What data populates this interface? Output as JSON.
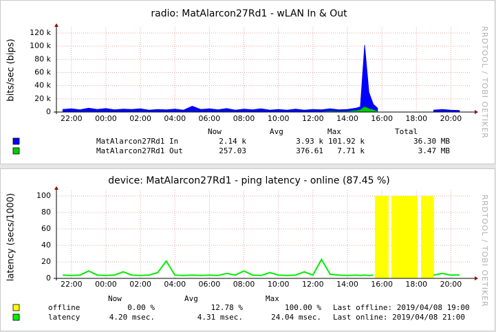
{
  "chart_data": [
    {
      "type": "area",
      "title": "radio: MatAlarcon27Rd1 - wLAN In & Out",
      "ylabel": "bits/sec (bips)",
      "watermark": "RRDTOOL / TOBI OETIKER",
      "grid": true,
      "xlim": [
        21.13,
        45.1
      ],
      "xticks": [
        {
          "value": 22,
          "label": "22:00"
        },
        {
          "value": 24,
          "label": "00:00"
        },
        {
          "value": 26,
          "label": "02:00"
        },
        {
          "value": 28,
          "label": "04:00"
        },
        {
          "value": 30,
          "label": "06:00"
        },
        {
          "value": 32,
          "label": "08:00"
        },
        {
          "value": 34,
          "label": "10:00"
        },
        {
          "value": 36,
          "label": "12:00"
        },
        {
          "value": 38,
          "label": "14:00"
        },
        {
          "value": 40,
          "label": "16:00"
        },
        {
          "value": 42,
          "label": "18:00"
        },
        {
          "value": 44,
          "label": "20:00"
        }
      ],
      "ylim": [
        0,
        120000
      ],
      "yticks": [
        0,
        {
          "value": 20000,
          "label": "20 k"
        },
        {
          "value": 40000,
          "label": "40 k"
        },
        {
          "value": 60000,
          "label": "60 k"
        },
        {
          "value": 80000,
          "label": "80 k"
        },
        {
          "value": 100000,
          "label": "100 k"
        },
        {
          "value": 120000,
          "label": "120 k"
        }
      ],
      "x": [
        21.5,
        22,
        22.5,
        23,
        23.5,
        24,
        24.5,
        25,
        25.5,
        26,
        26.5,
        27,
        27.5,
        28,
        28.5,
        29,
        29.5,
        30,
        30.5,
        31,
        31.5,
        32,
        32.5,
        33,
        33.5,
        34,
        34.5,
        35,
        35.5,
        36,
        36.5,
        37,
        37.5,
        38,
        38.5,
        38.75,
        39,
        39.25,
        39.5,
        39.75,
        40,
        40.5,
        41,
        41.5,
        42,
        42.5,
        43,
        43.5,
        44,
        44.5
      ],
      "series": [
        {
          "name": "MatAlarcon27Rd1 In",
          "color": "#0000ff",
          "values": [
            4000,
            5000,
            3500,
            6000,
            4000,
            5500,
            3500,
            4500,
            4000,
            5000,
            3000,
            4000,
            3500,
            4500,
            3000,
            9000,
            4000,
            5000,
            3500,
            5500,
            3000,
            4500,
            3500,
            5000,
            3000,
            4000,
            3000,
            4500,
            3000,
            4000,
            3500,
            5000,
            3500,
            4000,
            6000,
            8000,
            101920,
            30000,
            12000,
            6000,
            null,
            null,
            null,
            null,
            null,
            null,
            3000,
            4000,
            3000,
            2500
          ]
        },
        {
          "name": "MatAlarcon27Rd1 Out",
          "color": "#00cc00",
          "values": [
            300,
            300,
            250,
            350,
            300,
            300,
            250,
            300,
            300,
            350,
            250,
            300,
            300,
            300,
            250,
            400,
            300,
            300,
            250,
            350,
            300,
            300,
            250,
            300,
            300,
            300,
            250,
            300,
            300,
            300,
            250,
            1000,
            600,
            800,
            2000,
            3000,
            7710,
            5000,
            3000,
            1000,
            null,
            null,
            null,
            null,
            null,
            null,
            200,
            200,
            200,
            200
          ]
        }
      ],
      "legend_table": {
        "columns": [
          "Now",
          "Avg",
          "Max",
          "Total"
        ],
        "rows": [
          {
            "cells": [
              "2.14 k",
              "3.93 k",
              "101.92 k",
              "36.30 MB"
            ]
          },
          {
            "cells": [
              "257.03",
              "376.61",
              "7.71 k",
              "3.47 MB"
            ]
          }
        ]
      }
    },
    {
      "type": "line",
      "title": "device: MatAlarcon27Rd1 -  ping latency - online (87.45 %)",
      "ylabel": "latency (secs/1000)",
      "watermark": "RRDTOOL / TOBI OETIKER",
      "grid": true,
      "xlim": [
        21.13,
        45.1
      ],
      "xticks": [
        {
          "value": 22,
          "label": "22:00"
        },
        {
          "value": 24,
          "label": "00:00"
        },
        {
          "value": 26,
          "label": "02:00"
        },
        {
          "value": 28,
          "label": "04:00"
        },
        {
          "value": 30,
          "label": "06:00"
        },
        {
          "value": 32,
          "label": "08:00"
        },
        {
          "value": 34,
          "label": "10:00"
        },
        {
          "value": 36,
          "label": "12:00"
        },
        {
          "value": 38,
          "label": "14:00"
        },
        {
          "value": 40,
          "label": "16:00"
        },
        {
          "value": 42,
          "label": "18:00"
        },
        {
          "value": 44,
          "label": "20:00"
        }
      ],
      "ylim": [
        0,
        100
      ],
      "yticks": [
        0,
        20,
        40,
        60,
        80,
        100
      ],
      "x": [
        21.5,
        22,
        22.5,
        23,
        23.5,
        24,
        24.5,
        25,
        25.5,
        26,
        26.5,
        27,
        27.5,
        28,
        28.5,
        29,
        29.5,
        30,
        30.5,
        31,
        31.5,
        32,
        32.5,
        33,
        33.5,
        34,
        34.5,
        35,
        35.5,
        36,
        36.5,
        37,
        37.5,
        38,
        38.5,
        38.75,
        39,
        39.25,
        39.5,
        39.75,
        40,
        40.5,
        41,
        41.5,
        42,
        42.5,
        43,
        43.5,
        44,
        44.5
      ],
      "series": [
        {
          "name": "offline",
          "color": "#ffff00",
          "type": "step-area",
          "x": [
            21.13,
            39.6,
            40.39,
            40.55,
            42.07,
            42.27,
            43.02
          ],
          "values": [
            0,
            100,
            0,
            100,
            0,
            100,
            0
          ]
        },
        {
          "name": "latency",
          "color": "#00ee00",
          "type": "line",
          "values": [
            4,
            3.5,
            4,
            9,
            4,
            3.5,
            4,
            8,
            4,
            3.5,
            4,
            7,
            21,
            4,
            3.5,
            4,
            3.5,
            4,
            3.5,
            6,
            4,
            9,
            4,
            3.5,
            7,
            4,
            3.5,
            4,
            8,
            4,
            23,
            5,
            4,
            3.5,
            4,
            3.5,
            4,
            3.5,
            4,
            null,
            null,
            null,
            null,
            null,
            null,
            null,
            4,
            6,
            4,
            4.2
          ]
        }
      ],
      "legend_table": {
        "columns": [
          "Now",
          "Avg",
          "Max"
        ],
        "rows": [
          {
            "cells": [
              "0.00 %",
              "12.78 %",
              "100.00 %"
            ],
            "note": "Last offline: 2019/04/08 19:00"
          },
          {
            "cells": [
              "4.20 msec.",
              "4.31 msec.",
              "24.04 msec."
            ],
            "note": "Last online: 2019/04/08 21:00"
          }
        ]
      }
    }
  ]
}
